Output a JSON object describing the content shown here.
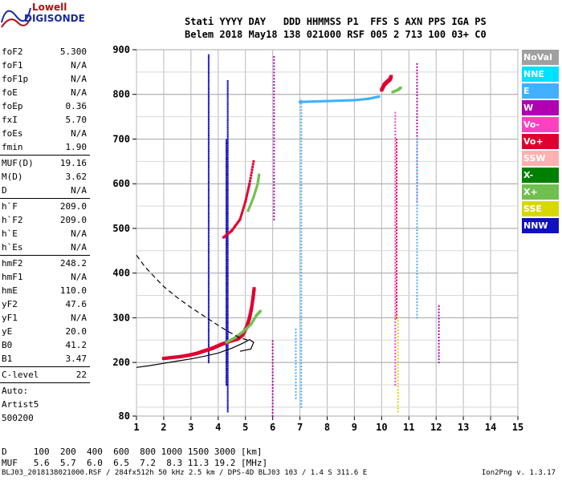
{
  "logo": {
    "top": "Lowell",
    "bottom": "DIGISONDE"
  },
  "header": {
    "line1": "Stati YYYY DAY   DDD HHMMSS P1  FFS S AXN PPS IGA PS",
    "line2": "Belem 2018 May18 138 021000 RSF 005 2 713 100 03+ C0"
  },
  "params": [
    {
      "label": "foF2",
      "value": "5.300"
    },
    {
      "label": "foF1",
      "value": "N/A"
    },
    {
      "label": "foF1p",
      "value": "N/A"
    },
    {
      "label": "foE",
      "value": "N/A"
    },
    {
      "label": "foEp",
      "value": "0.36"
    },
    {
      "label": "fxI",
      "value": "5.70"
    },
    {
      "label": "foEs",
      "value": "N/A"
    },
    {
      "label": "fmin",
      "value": "1.90"
    },
    {
      "sep": true
    },
    {
      "label": "MUF(D)",
      "value": "19.16"
    },
    {
      "label": "M(D)",
      "value": "3.62"
    },
    {
      "label": "D",
      "value": "N/A"
    },
    {
      "sep": true
    },
    {
      "label": "h`F",
      "value": "209.0"
    },
    {
      "label": "h`F2",
      "value": "209.0"
    },
    {
      "label": "h`E",
      "value": "N/A"
    },
    {
      "label": "h`Es",
      "value": "N/A"
    },
    {
      "sep": true
    },
    {
      "label": "hmF2",
      "value": "248.2"
    },
    {
      "label": "hmF1",
      "value": "N/A"
    },
    {
      "label": "hmE",
      "value": "110.0"
    },
    {
      "label": "yF2",
      "value": "47.6"
    },
    {
      "label": "yF1",
      "value": "N/A"
    },
    {
      "label": "yE",
      "value": "20.0"
    },
    {
      "label": "B0",
      "value": "41.2"
    },
    {
      "label": "B1",
      "value": "3.47"
    },
    {
      "sep": true
    },
    {
      "label": "C-level",
      "value": "22"
    },
    {
      "sep": true
    },
    {
      "label": "Auto:",
      "value": ""
    },
    {
      "label": "Artist5",
      "value": ""
    },
    {
      "label": "500200",
      "value": ""
    }
  ],
  "legend": [
    {
      "label": "NoVal",
      "color": "#a0a0a0"
    },
    {
      "label": "NNE",
      "color": "#00e0ff"
    },
    {
      "label": "E",
      "color": "#40b0ff"
    },
    {
      "label": "W",
      "color": "#b000b0"
    },
    {
      "label": "Vo-",
      "color": "#ff40c0"
    },
    {
      "label": "Vo+",
      "color": "#e00030"
    },
    {
      "label": "SSW",
      "color": "#ffb0b0"
    },
    {
      "label": "X-",
      "color": "#008000"
    },
    {
      "label": "X+",
      "color": "#70c050"
    },
    {
      "label": "SSE",
      "color": "#d8d800"
    },
    {
      "label": "NNW",
      "color": "#1010c0"
    }
  ],
  "d_line": "D     100  200  400  600  800 1000 1500 3000 [km]",
  "muf_line": "MUF   5.6  5.7  6.0  6.5  7.2  8.3 11.3 19.2 [MHz]",
  "footer": "BLJ03_2018138021000.RSF / 284fx512h 50 kHz 2.5 km / DPS-4D BLJ03 103 / 1.4 S 311.6 E",
  "footer_right": "Ion2Png v. 1.3.17",
  "chart_data": {
    "type": "scatter",
    "title": "",
    "xlabel": "",
    "ylabel": "",
    "xlim": [
      1,
      15
    ],
    "ylim": [
      80,
      900
    ],
    "x_ticks": [
      "1",
      "2",
      "3",
      "4",
      "5",
      "6",
      "7",
      "8",
      "9",
      "10",
      "11",
      "12",
      "13",
      "14",
      "15"
    ],
    "y_ticks": [
      "80",
      "200",
      "300",
      "400",
      "500",
      "600",
      "700",
      "800",
      "900"
    ],
    "grid": true,
    "legend_position": "right",
    "o_trace": {
      "name": "Vo+",
      "points": [
        [
          2.0,
          209
        ],
        [
          2.3,
          211
        ],
        [
          2.6,
          213
        ],
        [
          2.9,
          216
        ],
        [
          3.2,
          220
        ],
        [
          3.5,
          226
        ],
        [
          3.8,
          232
        ],
        [
          4.1,
          240
        ],
        [
          4.4,
          247
        ],
        [
          4.7,
          252
        ],
        [
          4.9,
          262
        ],
        [
          5.05,
          280
        ],
        [
          5.15,
          300
        ],
        [
          5.22,
          320
        ],
        [
          5.28,
          345
        ],
        [
          5.32,
          365
        ]
      ]
    },
    "x_trace": {
      "name": "X+",
      "points": [
        [
          4.3,
          245
        ],
        [
          4.6,
          255
        ],
        [
          4.9,
          268
        ],
        [
          5.2,
          285
        ],
        [
          5.4,
          305
        ],
        [
          5.55,
          315
        ]
      ]
    },
    "o_multi": {
      "name": "Vo+",
      "points": [
        [
          4.2,
          480
        ],
        [
          4.5,
          495
        ],
        [
          4.8,
          520
        ],
        [
          5.0,
          560
        ],
        [
          5.15,
          600
        ],
        [
          5.3,
          650
        ]
      ]
    },
    "x_multi": {
      "name": "X+",
      "points": [
        [
          5.1,
          540
        ],
        [
          5.3,
          570
        ],
        [
          5.45,
          600
        ],
        [
          5.5,
          620
        ]
      ]
    },
    "high_o": {
      "name": "Vo+",
      "points": [
        [
          10.0,
          810
        ],
        [
          10.1,
          822
        ],
        [
          10.2,
          828
        ],
        [
          10.3,
          833
        ],
        [
          10.35,
          840
        ]
      ]
    },
    "high_e": {
      "name": "E",
      "points": [
        [
          7.0,
          783
        ],
        [
          7.5,
          784
        ],
        [
          8.0,
          785
        ],
        [
          8.5,
          786
        ],
        [
          9.0,
          787
        ],
        [
          9.5,
          790
        ],
        [
          9.9,
          795
        ]
      ]
    },
    "high_x": {
      "name": "X+",
      "points": [
        [
          10.4,
          805
        ],
        [
          10.6,
          810
        ],
        [
          10.7,
          815
        ]
      ]
    },
    "profile_solid": {
      "name": "",
      "points": [
        [
          1.0,
          189
        ],
        [
          1.5,
          193
        ],
        [
          2.0,
          198
        ],
        [
          2.5,
          203
        ],
        [
          3.0,
          208
        ],
        [
          3.5,
          214
        ],
        [
          4.0,
          221
        ],
        [
          4.5,
          232
        ],
        [
          4.9,
          243
        ],
        [
          5.15,
          251
        ],
        [
          5.3,
          245
        ],
        [
          5.2,
          230
        ],
        [
          4.8,
          225
        ]
      ]
    },
    "profile_dashed": {
      "name": "",
      "points": [
        [
          1.0,
          440
        ],
        [
          1.3,
          415
        ],
        [
          1.6,
          395
        ],
        [
          2.0,
          370
        ],
        [
          2.5,
          345
        ],
        [
          3.0,
          323
        ],
        [
          3.5,
          303
        ],
        [
          4.0,
          283
        ],
        [
          4.4,
          268
        ],
        [
          4.8,
          255
        ],
        [
          5.1,
          250
        ]
      ]
    },
    "vertical_bands": [
      {
        "name": "NNW",
        "x": 3.65,
        "y_from": 200,
        "y_to": 890
      },
      {
        "name": "NNW",
        "x": 4.35,
        "y_from": 90,
        "y_to": 830
      },
      {
        "name": "NNW",
        "x": 4.3,
        "y_from": 150,
        "y_to": 700
      },
      {
        "name": "E",
        "x": 7.05,
        "y_from": 100,
        "y_to": 790
      },
      {
        "name": "E",
        "x": 6.85,
        "y_from": 120,
        "y_to": 280
      },
      {
        "name": "Vo-",
        "x": 10.5,
        "y_from": 150,
        "y_to": 760
      },
      {
        "name": "Vo+",
        "x": 10.55,
        "y_from": 300,
        "y_to": 700
      },
      {
        "name": "SSE",
        "x": 10.6,
        "y_from": 90,
        "y_to": 300
      },
      {
        "name": "W",
        "x": 11.3,
        "y_from": 560,
        "y_to": 870
      },
      {
        "name": "W",
        "x": 12.1,
        "y_from": 200,
        "y_to": 330
      },
      {
        "name": "W",
        "x": 6.0,
        "y_from": 80,
        "y_to": 250
      },
      {
        "name": "W",
        "x": 6.05,
        "y_from": 520,
        "y_to": 890
      },
      {
        "name": "E",
        "x": 11.3,
        "y_from": 300,
        "y_to": 700
      }
    ]
  }
}
